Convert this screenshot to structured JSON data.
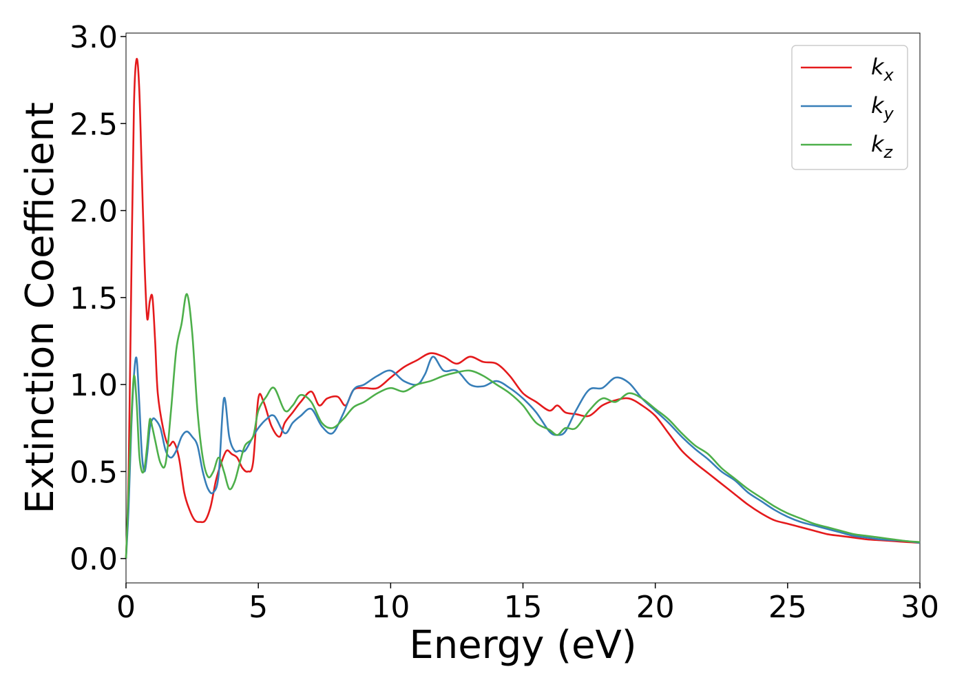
{
  "chart_data": {
    "type": "line",
    "xlabel": "Energy (eV)",
    "ylabel": "Extinction Coefficient",
    "xlim": [
      0,
      30
    ],
    "ylim": [
      -0.14,
      3.02
    ],
    "xticks": [
      "0",
      "5",
      "10",
      "15",
      "20",
      "25",
      "30"
    ],
    "yticks": [
      "0.0",
      "0.5",
      "1.0",
      "1.5",
      "2.0",
      "2.5",
      "3.0"
    ],
    "grid": false,
    "legend_position": "top-right",
    "series": [
      {
        "name": "k",
        "subscript": "x",
        "color": "#e41a1c",
        "x": [
          0,
          0.1,
          0.2,
          0.3,
          0.4,
          0.5,
          0.6,
          0.7,
          0.8,
          0.9,
          1.0,
          1.1,
          1.2,
          1.4,
          1.6,
          1.8,
          2.0,
          2.2,
          2.4,
          2.6,
          2.8,
          3.0,
          3.2,
          3.4,
          3.6,
          3.8,
          4.0,
          4.2,
          4.4,
          4.6,
          4.8,
          5.0,
          5.2,
          5.5,
          5.8,
          6.0,
          6.3,
          6.6,
          7.0,
          7.3,
          7.6,
          8.0,
          8.3,
          8.6,
          9.0,
          9.5,
          10.0,
          10.5,
          11.0,
          11.5,
          12.0,
          12.5,
          13.0,
          13.5,
          14.0,
          14.5,
          15.0,
          15.5,
          16.0,
          16.3,
          16.6,
          17.0,
          17.5,
          18.0,
          18.5,
          19.0,
          19.5,
          20.0,
          20.5,
          21.0,
          21.5,
          22.0,
          22.5,
          23.0,
          23.5,
          24.0,
          24.5,
          25.0,
          25.5,
          26.0,
          26.5,
          27.0,
          27.5,
          28.0,
          28.5,
          29.0,
          29.5,
          30.0
        ],
        "y": [
          0.0,
          0.5,
          1.6,
          2.6,
          2.87,
          2.7,
          2.2,
          1.7,
          1.38,
          1.48,
          1.5,
          1.25,
          0.95,
          0.75,
          0.65,
          0.67,
          0.58,
          0.38,
          0.28,
          0.22,
          0.21,
          0.22,
          0.3,
          0.45,
          0.55,
          0.62,
          0.6,
          0.58,
          0.52,
          0.5,
          0.55,
          0.92,
          0.9,
          0.76,
          0.7,
          0.78,
          0.84,
          0.9,
          0.96,
          0.88,
          0.92,
          0.93,
          0.88,
          0.97,
          0.98,
          0.98,
          1.04,
          1.1,
          1.14,
          1.18,
          1.16,
          1.12,
          1.16,
          1.13,
          1.12,
          1.05,
          0.95,
          0.9,
          0.85,
          0.88,
          0.84,
          0.83,
          0.82,
          0.88,
          0.91,
          0.92,
          0.88,
          0.82,
          0.72,
          0.62,
          0.55,
          0.49,
          0.43,
          0.37,
          0.31,
          0.26,
          0.22,
          0.2,
          0.18,
          0.16,
          0.14,
          0.13,
          0.12,
          0.11,
          0.105,
          0.1,
          0.095,
          0.09
        ]
      },
      {
        "name": "k",
        "subscript": "y",
        "color": "#377eb8",
        "x": [
          0,
          0.1,
          0.2,
          0.3,
          0.4,
          0.5,
          0.6,
          0.7,
          0.8,
          0.9,
          1.0,
          1.1,
          1.3,
          1.5,
          1.7,
          1.9,
          2.1,
          2.3,
          2.5,
          2.7,
          2.9,
          3.1,
          3.3,
          3.5,
          3.7,
          3.9,
          4.1,
          4.3,
          4.5,
          4.8,
          5.0,
          5.3,
          5.6,
          6.0,
          6.3,
          6.6,
          7.0,
          7.4,
          7.8,
          8.2,
          8.6,
          9.0,
          9.5,
          10.0,
          10.5,
          11.0,
          11.3,
          11.6,
          12.0,
          12.5,
          13.0,
          13.5,
          14.0,
          14.5,
          15.0,
          15.5,
          16.0,
          16.3,
          16.6,
          17.0,
          17.5,
          18.0,
          18.5,
          19.0,
          19.5,
          20.0,
          20.5,
          21.0,
          21.5,
          22.0,
          22.5,
          23.0,
          23.5,
          24.0,
          24.5,
          25.0,
          25.5,
          26.0,
          26.5,
          27.0,
          27.5,
          28.0,
          28.5,
          29.0,
          29.5,
          30.0
        ],
        "y": [
          0.0,
          0.3,
          0.75,
          1.05,
          1.15,
          0.9,
          0.6,
          0.5,
          0.6,
          0.75,
          0.8,
          0.8,
          0.75,
          0.62,
          0.58,
          0.62,
          0.7,
          0.73,
          0.7,
          0.65,
          0.5,
          0.4,
          0.38,
          0.48,
          0.92,
          0.7,
          0.62,
          0.62,
          0.62,
          0.7,
          0.75,
          0.8,
          0.82,
          0.72,
          0.78,
          0.82,
          0.86,
          0.76,
          0.72,
          0.83,
          0.97,
          1.0,
          1.05,
          1.08,
          1.02,
          1.0,
          1.06,
          1.16,
          1.08,
          1.08,
          1.0,
          0.99,
          1.02,
          0.98,
          0.92,
          0.84,
          0.73,
          0.71,
          0.73,
          0.85,
          0.97,
          0.98,
          1.04,
          1.01,
          0.92,
          0.85,
          0.78,
          0.7,
          0.63,
          0.57,
          0.5,
          0.45,
          0.38,
          0.33,
          0.28,
          0.24,
          0.21,
          0.19,
          0.17,
          0.15,
          0.13,
          0.12,
          0.11,
          0.105,
          0.1,
          0.09
        ]
      },
      {
        "name": "k",
        "subscript": "z",
        "color": "#4daf4a",
        "x": [
          0,
          0.1,
          0.2,
          0.3,
          0.4,
          0.5,
          0.6,
          0.7,
          0.8,
          0.9,
          1.0,
          1.1,
          1.3,
          1.5,
          1.7,
          1.9,
          2.1,
          2.3,
          2.5,
          2.7,
          2.9,
          3.1,
          3.3,
          3.5,
          3.7,
          3.9,
          4.1,
          4.3,
          4.5,
          4.8,
          5.0,
          5.3,
          5.6,
          6.0,
          6.3,
          6.6,
          7.0,
          7.4,
          7.8,
          8.2,
          8.6,
          9.0,
          9.5,
          10.0,
          10.5,
          11.0,
          11.5,
          12.0,
          12.5,
          13.0,
          13.5,
          14.0,
          14.5,
          15.0,
          15.5,
          16.0,
          16.3,
          16.6,
          17.0,
          17.5,
          18.0,
          18.5,
          19.0,
          19.5,
          20.0,
          20.5,
          21.0,
          21.5,
          22.0,
          22.5,
          23.0,
          23.5,
          24.0,
          24.5,
          25.0,
          25.5,
          26.0,
          26.5,
          27.0,
          27.5,
          28.0,
          28.5,
          29.0,
          29.5,
          30.0
        ],
        "y": [
          0.0,
          0.4,
          0.8,
          1.05,
          0.9,
          0.6,
          0.5,
          0.52,
          0.65,
          0.8,
          0.75,
          0.68,
          0.55,
          0.55,
          0.85,
          1.2,
          1.35,
          1.52,
          1.3,
          0.85,
          0.58,
          0.47,
          0.5,
          0.58,
          0.5,
          0.4,
          0.44,
          0.55,
          0.65,
          0.7,
          0.85,
          0.93,
          0.98,
          0.85,
          0.88,
          0.94,
          0.9,
          0.78,
          0.75,
          0.8,
          0.87,
          0.9,
          0.95,
          0.98,
          0.96,
          1.0,
          1.02,
          1.05,
          1.07,
          1.08,
          1.05,
          1.0,
          0.95,
          0.88,
          0.78,
          0.74,
          0.71,
          0.75,
          0.75,
          0.85,
          0.92,
          0.9,
          0.95,
          0.92,
          0.86,
          0.8,
          0.72,
          0.65,
          0.6,
          0.52,
          0.46,
          0.4,
          0.35,
          0.3,
          0.26,
          0.23,
          0.2,
          0.18,
          0.16,
          0.14,
          0.13,
          0.12,
          0.11,
          0.1,
          0.095
        ]
      }
    ]
  }
}
